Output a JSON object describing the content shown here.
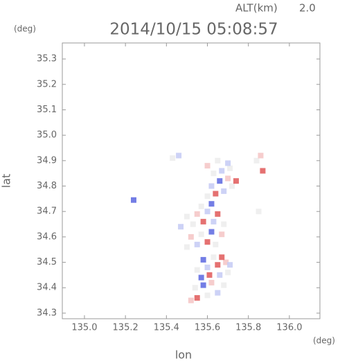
{
  "chart_data": {
    "type": "scatter",
    "title": "2014/10/15 05:08:57",
    "altitude_label": "ALT(km)",
    "altitude": "2.0",
    "y_unit": "(deg)",
    "x_unit": "(deg)",
    "xlabel": "lon",
    "ylabel": "lat",
    "xlim": [
      134.892,
      136.149
    ],
    "ylim": [
      34.278,
      35.363
    ],
    "xticks": [
      {
        "value": 135.0,
        "label": "135.0"
      },
      135.2,
      135.4,
      135.6,
      135.8,
      {
        "value": 136.0,
        "label": "136.0"
      }
    ],
    "yticks": [
      34.3,
      34.4,
      34.5,
      34.6,
      34.7,
      34.8,
      34.9,
      {
        "value": 35.0,
        "label": "35.0"
      },
      35.1,
      35.2,
      35.3
    ],
    "x": [
      135.52,
      135.55,
      135.6,
      135.65,
      135.54,
      135.58,
      135.62,
      135.68,
      135.57,
      135.61,
      135.66,
      135.7,
      135.55,
      135.6,
      135.65,
      135.69,
      135.58,
      135.63,
      135.67,
      135.71,
      135.5,
      135.55,
      135.6,
      135.64,
      135.52,
      135.57,
      135.62,
      135.67,
      135.47,
      135.53,
      135.58,
      135.63,
      135.68,
      135.5,
      135.55,
      135.6,
      135.65,
      135.57,
      135.62,
      135.6,
      135.64,
      135.68,
      135.72,
      135.62,
      135.66,
      135.7,
      135.74,
      135.63,
      135.67,
      135.71,
      135.6,
      135.65,
      135.7,
      135.43,
      135.46,
      135.84,
      135.86,
      135.87,
      135.24,
      135.85
    ],
    "y": [
      34.35,
      34.36,
      34.37,
      34.38,
      34.4,
      34.41,
      34.42,
      34.41,
      34.44,
      34.45,
      34.45,
      34.46,
      34.47,
      34.48,
      34.49,
      34.5,
      34.51,
      34.52,
      34.52,
      34.49,
      34.56,
      34.57,
      34.58,
      34.57,
      34.6,
      34.61,
      34.62,
      34.61,
      34.64,
      34.65,
      34.66,
      34.66,
      34.65,
      34.68,
      34.69,
      34.7,
      34.69,
      34.72,
      34.73,
      34.76,
      34.77,
      34.78,
      34.8,
      34.8,
      34.82,
      34.83,
      34.82,
      34.85,
      34.86,
      34.87,
      34.88,
      34.9,
      34.89,
      34.91,
      34.92,
      34.9,
      34.92,
      34.86,
      34.745,
      34.7
    ],
    "colors": [
      "#f4c4c4",
      "#e05858",
      "#ececec",
      "#c4caf4",
      "#ececec",
      "#5a66e0",
      "#f4c4c4",
      "#ececec",
      "#5a66e0",
      "#e05858",
      "#c4caf4",
      "#ececec",
      "#ececec",
      "#c4caf4",
      "#e05858",
      "#f4c4c4",
      "#5a66e0",
      "#ececec",
      "#e05858",
      "#c4caf4",
      "#ececec",
      "#c4caf4",
      "#e05858",
      "#ececec",
      "#f4c4c4",
      "#ececec",
      "#5a66e0",
      "#f4c4c4",
      "#c4caf4",
      "#ececec",
      "#e05858",
      "#c4caf4",
      "#ececec",
      "#ececec",
      "#f4c4c4",
      "#c4caf4",
      "#e05858",
      "#ececec",
      "#5a66e0",
      "#ececec",
      "#e05858",
      "#c4caf4",
      "#ececec",
      "#c4caf4",
      "#5a66e0",
      "#f4c4c4",
      "#e05858",
      "#ececec",
      "#c4caf4",
      "#ececec",
      "#f4c4c4",
      "#ececec",
      "#c4caf4",
      "#ececec",
      "#c4caf4",
      "#ececec",
      "#f4c4c4",
      "#e05858",
      "#5a66e0",
      "#ececec"
    ]
  }
}
